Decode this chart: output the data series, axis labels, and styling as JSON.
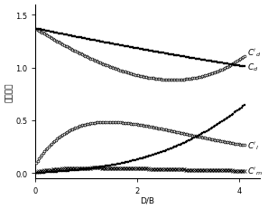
{
  "title": "",
  "xlabel": "D/B",
  "ylabel": "风力系数",
  "xlim": [
    0,
    4.4
  ],
  "ylim": [
    -0.05,
    1.6
  ],
  "yticks": [
    0.0,
    0.5,
    1.0,
    1.5
  ],
  "xticks": [
    0,
    2,
    4
  ],
  "background_color": "#ffffff",
  "markersize": 2.0,
  "label_fontsize": 6.5,
  "axis_fontsize": 6.5
}
